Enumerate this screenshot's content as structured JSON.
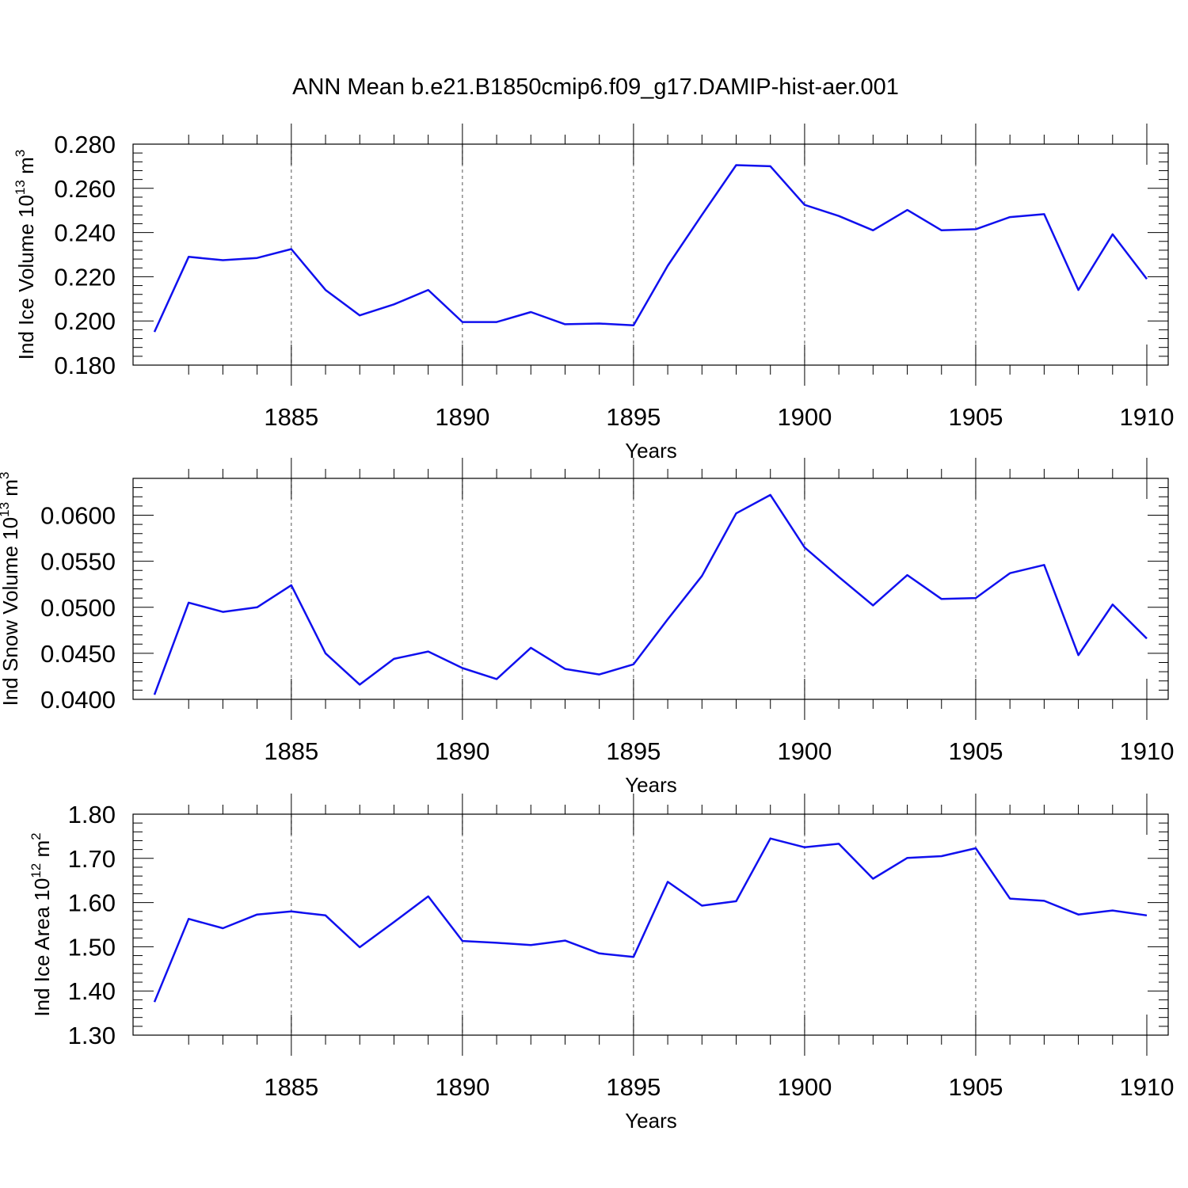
{
  "figure_title": "ANN Mean b.e21.B1850cmip6.f09_g17.DAMIP-hist-aer.001",
  "chart_data": [
    {
      "type": "line",
      "ylabel": "Ind Ice Volume 10",
      "ylabel_exp": "13",
      "ylabel_unit": "m",
      "ylabel_unit_exp": "3",
      "xlabel": "Years",
      "xlim": [
        1881,
        1910
      ],
      "ylim": [
        0.18,
        0.28
      ],
      "yticks": [
        0.18,
        0.2,
        0.22,
        0.24,
        0.26,
        0.28
      ],
      "ytick_labels": [
        "0.180",
        "0.200",
        "0.220",
        "0.240",
        "0.260",
        "0.280"
      ],
      "xticks": [
        1885,
        1890,
        1895,
        1900,
        1905,
        1910
      ],
      "xtick_labels": [
        "1885",
        "1890",
        "1895",
        "1900",
        "1905",
        "1910"
      ],
      "grid": "vertical dashed at major x ticks",
      "color": "#1010ee",
      "x": [
        1881,
        1882,
        1883,
        1884,
        1885,
        1886,
        1887,
        1888,
        1889,
        1890,
        1891,
        1892,
        1893,
        1894,
        1895,
        1896,
        1897,
        1898,
        1899,
        1900,
        1901,
        1902,
        1903,
        1904,
        1905,
        1906,
        1907,
        1908,
        1909,
        1910
      ],
      "values": [
        0.195,
        0.229,
        0.2275,
        0.2285,
        0.2325,
        0.214,
        0.2025,
        0.2075,
        0.214,
        0.1995,
        0.1995,
        0.204,
        0.1985,
        0.1988,
        0.198,
        0.225,
        0.248,
        0.2705,
        0.27,
        0.2525,
        0.2475,
        0.241,
        0.2502,
        0.241,
        0.2415,
        0.247,
        0.2483,
        0.214,
        0.2392,
        0.219
      ]
    },
    {
      "type": "line",
      "ylabel": "Ind Snow Volume 10",
      "ylabel_exp": "13",
      "ylabel_unit": "m",
      "ylabel_unit_exp": "3",
      "xlabel": "Years",
      "xlim": [
        1881,
        1910
      ],
      "ylim": [
        0.04,
        0.064
      ],
      "yticks": [
        0.04,
        0.045,
        0.05,
        0.055,
        0.06
      ],
      "ytick_labels": [
        "0.0400",
        "0.0450",
        "0.0500",
        "0.0550",
        "0.0600"
      ],
      "xticks": [
        1885,
        1890,
        1895,
        1900,
        1905,
        1910
      ],
      "xtick_labels": [
        "1885",
        "1890",
        "1895",
        "1900",
        "1905",
        "1910"
      ],
      "grid": "vertical dashed at major x ticks",
      "color": "#1010ee",
      "x": [
        1881,
        1882,
        1883,
        1884,
        1885,
        1886,
        1887,
        1888,
        1889,
        1890,
        1891,
        1892,
        1893,
        1894,
        1895,
        1896,
        1897,
        1898,
        1899,
        1900,
        1901,
        1902,
        1903,
        1904,
        1905,
        1906,
        1907,
        1908,
        1909,
        1910
      ],
      "values": [
        0.0405,
        0.0505,
        0.0495,
        0.05,
        0.0524,
        0.045,
        0.0416,
        0.0444,
        0.0452,
        0.0434,
        0.0422,
        0.0456,
        0.0433,
        0.0427,
        0.0438,
        0.0487,
        0.0534,
        0.0602,
        0.0622,
        0.0565,
        0.0533,
        0.0502,
        0.0535,
        0.0509,
        0.051,
        0.0537,
        0.0546,
        0.0448,
        0.0503,
        0.0466
      ]
    },
    {
      "type": "line",
      "ylabel": "Ind Ice Area 10",
      "ylabel_exp": "12",
      "ylabel_unit": "m",
      "ylabel_unit_exp": "2",
      "xlabel": "Years",
      "xlim": [
        1881,
        1910
      ],
      "ylim": [
        1.3,
        1.8
      ],
      "yticks": [
        1.3,
        1.4,
        1.5,
        1.6,
        1.7,
        1.8
      ],
      "ytick_labels": [
        "1.30",
        "1.40",
        "1.50",
        "1.60",
        "1.70",
        "1.80"
      ],
      "xticks": [
        1885,
        1890,
        1895,
        1900,
        1905,
        1910
      ],
      "xtick_labels": [
        "1885",
        "1890",
        "1895",
        "1900",
        "1905",
        "1910"
      ],
      "grid": "vertical dashed at major x ticks",
      "color": "#1010ee",
      "x": [
        1881,
        1882,
        1883,
        1884,
        1885,
        1886,
        1887,
        1888,
        1889,
        1890,
        1891,
        1892,
        1893,
        1894,
        1895,
        1896,
        1897,
        1898,
        1899,
        1900,
        1901,
        1902,
        1903,
        1904,
        1905,
        1906,
        1907,
        1908,
        1909,
        1910
      ],
      "values": [
        1.375,
        1.563,
        1.542,
        1.573,
        1.58,
        1.571,
        1.499,
        1.556,
        1.614,
        1.513,
        1.509,
        1.504,
        1.514,
        1.485,
        1.477,
        1.647,
        1.593,
        1.603,
        1.745,
        1.725,
        1.733,
        1.654,
        1.701,
        1.705,
        1.723,
        1.609,
        1.604,
        1.573,
        1.582,
        1.571
      ]
    }
  ]
}
